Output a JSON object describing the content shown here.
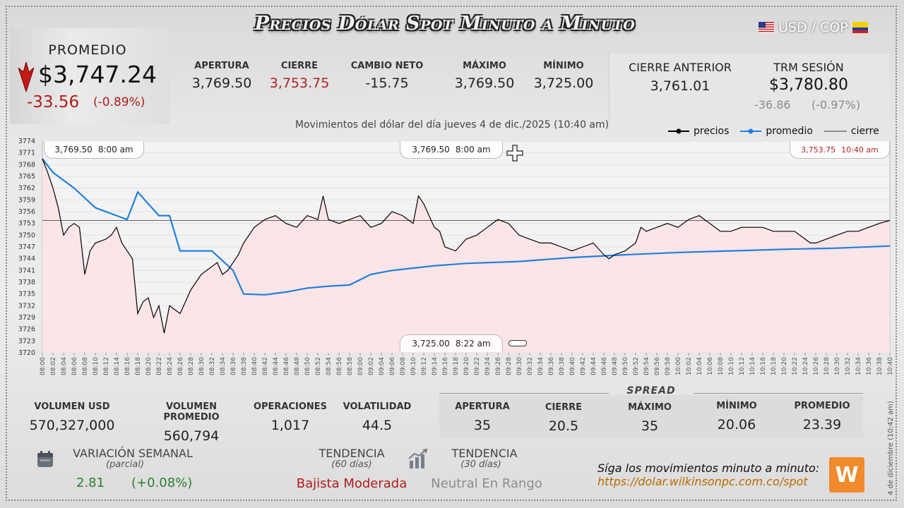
{
  "header": {
    "title": "Precios Dólar Spot Minuto a Minuto",
    "pair": "USD / COP"
  },
  "promedio": {
    "label": "PROMEDIO",
    "value": "$3,747.24",
    "change": "-33.56",
    "change_pct": "(-0.89%)"
  },
  "stats": [
    {
      "label": "APERTURA",
      "value": "3,769.50",
      "color": "#222222"
    },
    {
      "label": "CIERRE",
      "value": "3,753.75",
      "color": "#b22222"
    },
    {
      "label": "CAMBIO NETO",
      "value": "-15.75",
      "color": "#222222"
    },
    {
      "label": "MÁXIMO",
      "value": "3,769.50",
      "color": "#222222"
    },
    {
      "label": "MÍNIMO",
      "value": "3,725.00",
      "color": "#222222"
    }
  ],
  "cierre_anterior": {
    "label": "CIERRE ANTERIOR",
    "value": "3,761.01"
  },
  "trm": {
    "label": "TRM SESIÓN",
    "value": "$3,780.80",
    "change": "-36.86",
    "change_pct": "(-0.97%)"
  },
  "chart_data": {
    "type": "line",
    "title": "Movimientos del dólar del día jueves 4 de dic./2025 (10:40 am)",
    "xlabel": "",
    "ylabel": "",
    "ylim": [
      3720,
      3774
    ],
    "yticks": [
      3720,
      3723,
      3726,
      3729,
      3732,
      3735,
      3738,
      3741,
      3744,
      3747,
      3750,
      3753,
      3756,
      3759,
      3762,
      3765,
      3768,
      3771,
      3774
    ],
    "xlim": [
      "08:00",
      "10:40"
    ],
    "xticks": [
      "08:00",
      "08:02",
      "08:04",
      "08:06",
      "08:08",
      "08:10",
      "08:12",
      "08:14",
      "08:16",
      "08:18",
      "08:20",
      "08:22",
      "08:24",
      "08:26",
      "08:28",
      "08:30",
      "08:32",
      "08:34",
      "08:36",
      "08:38",
      "08:40",
      "08:42",
      "08:44",
      "08:46",
      "08:48",
      "08:50",
      "08:52",
      "08:54",
      "08:56",
      "08:58",
      "09:00",
      "09:02",
      "09:04",
      "09:06",
      "09:08",
      "09:10",
      "09:12",
      "09:14",
      "09:16",
      "09:18",
      "09:20",
      "09:22",
      "09:24",
      "09:26",
      "09:28",
      "09:30",
      "09:32",
      "09:34",
      "09:36",
      "09:38",
      "09:40",
      "09:42",
      "09:44",
      "09:46",
      "09:48",
      "09:50",
      "09:52",
      "09:54",
      "09:56",
      "09:58",
      "10:00",
      "10:02",
      "10:04",
      "10:06",
      "10:08",
      "10:10",
      "10:12",
      "10:14",
      "10:16",
      "10:18",
      "10:20",
      "10:22",
      "10:24",
      "10:26",
      "10:28",
      "10:30",
      "10:32",
      "10:34",
      "10:36",
      "10:38",
      "10:40"
    ],
    "legend": [
      "precios",
      "promedio",
      "cierre"
    ],
    "legend_position": "top-right",
    "cierre_value": 3753.75,
    "colors": {
      "precios": "#000000",
      "promedio": "#1e7fe0",
      "cierre": "#333333",
      "fill": "#fde3e4"
    },
    "series": [
      {
        "name": "precios",
        "x": [
          "08:00",
          "08:01",
          "08:02",
          "08:03",
          "08:04",
          "08:05",
          "08:06",
          "08:07",
          "08:08",
          "08:09",
          "08:10",
          "08:11",
          "08:12",
          "08:13",
          "08:14",
          "08:15",
          "08:16",
          "08:17",
          "08:18",
          "08:19",
          "08:20",
          "08:21",
          "08:22",
          "08:23",
          "08:24",
          "08:25",
          "08:26",
          "08:27",
          "08:28",
          "08:29",
          "08:30",
          "08:31",
          "08:32",
          "08:33",
          "08:34",
          "08:35",
          "08:36",
          "08:37",
          "08:38",
          "08:39",
          "08:40",
          "08:42",
          "08:44",
          "08:46",
          "08:48",
          "08:50",
          "08:52",
          "08:53",
          "08:54",
          "08:56",
          "08:58",
          "09:00",
          "09:02",
          "09:04",
          "09:06",
          "09:08",
          "09:10",
          "09:11",
          "09:12",
          "09:14",
          "09:15",
          "09:16",
          "09:18",
          "09:20",
          "09:22",
          "09:24",
          "09:26",
          "09:28",
          "09:30",
          "09:32",
          "09:34",
          "09:36",
          "09:38",
          "09:40",
          "09:42",
          "09:44",
          "09:46",
          "09:47",
          "09:48",
          "09:50",
          "09:52",
          "09:53",
          "09:54",
          "09:56",
          "09:58",
          "10:00",
          "10:02",
          "10:04",
          "10:06",
          "10:08",
          "10:10",
          "10:12",
          "10:14",
          "10:16",
          "10:18",
          "10:20",
          "10:22",
          "10:24",
          "10:25",
          "10:26",
          "10:28",
          "10:30",
          "10:32",
          "10:34",
          "10:36",
          "10:38",
          "10:40"
        ],
        "values": [
          3769.5,
          3766,
          3762,
          3757,
          3750,
          3752,
          3753,
          3752,
          3740,
          3746,
          3748,
          3748.5,
          3749,
          3750,
          3752,
          3748,
          3746,
          3744,
          3730,
          3733,
          3734,
          3729,
          3732,
          3725,
          3732,
          3731,
          3730,
          3733,
          3736,
          3738,
          3740,
          3741,
          3742,
          3743,
          3740,
          3741,
          3743,
          3745,
          3748,
          3750,
          3752,
          3754,
          3755,
          3753,
          3752,
          3755,
          3754,
          3760,
          3754,
          3753,
          3754,
          3755,
          3752,
          3753,
          3756,
          3755,
          3753,
          3760,
          3758,
          3752,
          3751,
          3747,
          3746,
          3749,
          3750,
          3752,
          3754,
          3753,
          3750,
          3749,
          3748,
          3748,
          3747,
          3746,
          3747,
          3748,
          3745,
          3744,
          3745,
          3746,
          3748,
          3752,
          3751,
          3752,
          3753,
          3752,
          3754,
          3755,
          3753,
          3751,
          3751,
          3752,
          3752,
          3752,
          3751,
          3751,
          3751,
          3749,
          3748,
          3748,
          3749,
          3750,
          3751,
          3751,
          3752,
          3753,
          3753.75
        ]
      },
      {
        "name": "promedio",
        "x": [
          "08:00",
          "08:02",
          "08:06",
          "08:10",
          "08:14",
          "08:16",
          "08:18",
          "08:22",
          "08:24",
          "08:26",
          "08:28",
          "08:32",
          "08:36",
          "08:38",
          "08:42",
          "08:46",
          "08:50",
          "08:54",
          "08:58",
          "09:02",
          "09:06",
          "09:10",
          "09:14",
          "09:20",
          "09:30",
          "09:40",
          "09:50",
          "10:00",
          "10:10",
          "10:20",
          "10:30",
          "10:40"
        ],
        "values": [
          3769.5,
          3766,
          3762,
          3757,
          3755,
          3754,
          3761,
          3755,
          3755,
          3746,
          3746,
          3746,
          3741,
          3735,
          3734.8,
          3735.5,
          3736.5,
          3737,
          3737.3,
          3740,
          3741,
          3741.6,
          3742.2,
          3742.8,
          3743.3,
          3744.3,
          3745,
          3745.6,
          3746,
          3746.4,
          3746.7,
          3747.24
        ]
      }
    ],
    "annotations": [
      {
        "text": "3,769.50",
        "time": "8:00 am"
      },
      {
        "text": "3,769.50",
        "time": "8:00 am"
      },
      {
        "text": "3,753.75",
        "time": "10:40 am"
      },
      {
        "text": "3,725.00",
        "time": "8:22 am"
      }
    ]
  },
  "bottom_stats": [
    {
      "label": "VOLUMEN USD",
      "value": "570,327,000"
    },
    {
      "label": "VOLUMEN PROMEDIO",
      "value": "560,794"
    },
    {
      "label": "OPERACIONES",
      "value": "1,017"
    },
    {
      "label": "VOLATILIDAD",
      "value": "44.5"
    }
  ],
  "spread": {
    "title": "SPREAD",
    "items": [
      {
        "label": "APERTURA",
        "value": "35"
      },
      {
        "label": "CIERRE",
        "value": "20.5"
      },
      {
        "label": "MÁXIMO",
        "value": "35"
      },
      {
        "label": "MÍNIMO",
        "value": "20.06"
      },
      {
        "label": "PROMEDIO",
        "value": "23.39"
      }
    ]
  },
  "variacion": {
    "label": "VARIACIÓN SEMANAL",
    "sub": "(parcial)",
    "value": "2.81",
    "pct": "(+0.08%)",
    "icon": "calendar-icon"
  },
  "tendencia60": {
    "label": "TENDENCIA",
    "sub": "(60 días)",
    "value": "Bajista Moderada"
  },
  "tendencia30": {
    "label": "TENDENCIA",
    "sub": "(30 días)",
    "value": "Neutral En Rango",
    "icon": "bar-chart-icon"
  },
  "footer": {
    "cta": "Síga los movimientos minuto a minuto:",
    "url": "https://dolar.wilkinsonpc.com.co/spot",
    "date_vertical": "4 de diciembre (10:42 am)",
    "logo": "W"
  }
}
